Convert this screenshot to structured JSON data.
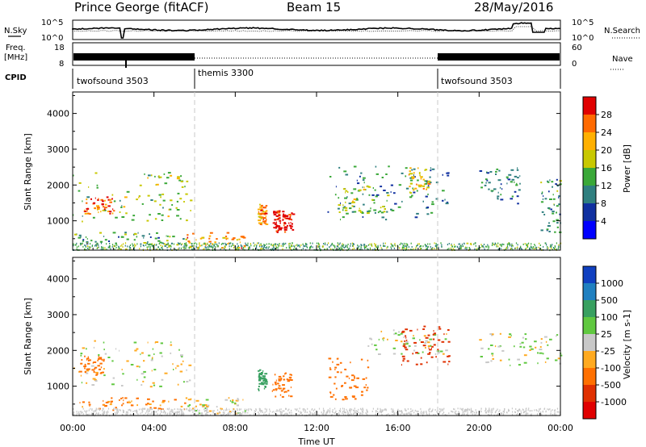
{
  "header": {
    "station": "Prince George (fitACF)",
    "beam": "Beam 15",
    "date": "28/May/2016"
  },
  "side_labels": {
    "nsky": "N.Sky",
    "freq_line1": "Freq.",
    "freq_line2": "[MHz]",
    "cpid": "CPID",
    "nsearch": "N.Search",
    "nave": "Nave",
    "nsky_ticks": [
      "10^5",
      "10^0"
    ],
    "nsearch_ticks": [
      "10^5",
      "10^0"
    ],
    "freq_ticks": [
      "18",
      "8"
    ],
    "nave_ticks": [
      "60",
      "0"
    ]
  },
  "cpid_segments": [
    {
      "label": "twofsound 3503",
      "start_hour": 0,
      "end_hour": 6
    },
    {
      "label": "themis 3300",
      "start_hour": 6,
      "end_hour": 18
    },
    {
      "label": "twofsound 3503",
      "start_hour": 18,
      "end_hour": 24
    }
  ],
  "axes": {
    "xlabel": "Time UT",
    "ylabel": "Slant Range [km]",
    "x_ticks": [
      "00:00",
      "04:00",
      "08:00",
      "12:00",
      "16:00",
      "20:00",
      "00:00"
    ],
    "x_tick_hours": [
      0,
      4,
      8,
      12,
      16,
      20,
      24
    ],
    "y_ticks": [
      "1000",
      "2000",
      "3000",
      "4000"
    ],
    "y_tick_values": [
      1000,
      2000,
      3000,
      4000
    ],
    "xlim": [
      0,
      24
    ],
    "ylim": [
      180,
      4600
    ]
  },
  "chart_data": [
    {
      "type": "heatmap",
      "title": "",
      "xlabel": "Time UT",
      "ylabel": "Slant Range [km]",
      "xlim": [
        0,
        24
      ],
      "ylim": [
        180,
        4600
      ],
      "colorbar": {
        "label": "Power [dB]",
        "ticks": [
          "28",
          "24",
          "20",
          "16",
          "12",
          "8",
          "4"
        ],
        "colors": [
          "#e00000",
          "#ff6a00",
          "#ffb000",
          "#c8c800",
          "#3aa838",
          "#2f7f7f",
          "#1030a0",
          "#0000ff"
        ]
      },
      "echo_regions": [
        {
          "t0": 0.0,
          "t1": 5.8,
          "r0": 1000,
          "r1": 2400,
          "value": 14
        },
        {
          "t0": 0.5,
          "t1": 2.0,
          "r0": 1200,
          "r1": 1700,
          "value": 24
        },
        {
          "t0": 0.0,
          "t1": 5.5,
          "r0": 350,
          "r1": 700,
          "value": 10
        },
        {
          "t0": 5.5,
          "t1": 8.5,
          "r0": 250,
          "r1": 700,
          "value": 22
        },
        {
          "t0": 9.1,
          "t1": 9.5,
          "r0": 900,
          "r1": 1500,
          "value": 22
        },
        {
          "t0": 9.8,
          "t1": 10.2,
          "r0": 700,
          "r1": 1300,
          "value": 30
        },
        {
          "t0": 10.3,
          "t1": 10.8,
          "r0": 700,
          "r1": 1300,
          "value": 30
        },
        {
          "t0": 12.5,
          "t1": 18.5,
          "r0": 1000,
          "r1": 2600,
          "value": 8
        },
        {
          "t0": 13.0,
          "t1": 15.5,
          "r0": 1200,
          "r1": 2000,
          "value": 14
        },
        {
          "t0": 16.5,
          "t1": 17.5,
          "r0": 1800,
          "r1": 2500,
          "value": 18
        },
        {
          "t0": 20.0,
          "t1": 22.0,
          "r0": 1500,
          "r1": 2500,
          "value": 8
        },
        {
          "t0": 23.0,
          "t1": 24.0,
          "r0": 700,
          "r1": 2200,
          "value": 10
        }
      ]
    },
    {
      "type": "heatmap",
      "title": "",
      "xlabel": "Time UT",
      "ylabel": "Slant Range [km]",
      "xlim": [
        0,
        24
      ],
      "ylim": [
        180,
        4600
      ],
      "colorbar": {
        "label": "Velocity [m s-1]",
        "ticks": [
          "1000",
          "500",
          "100",
          "25",
          "-25",
          "-100",
          "-500",
          "-1000"
        ],
        "colors": [
          "#1040c0",
          "#2080c0",
          "#38a060",
          "#60c840",
          "#c8c8c8",
          "#ffaa20",
          "#ff7000",
          "#e03000",
          "#e00000"
        ]
      },
      "echo_regions": [
        {
          "t0": 0.0,
          "t1": 5.8,
          "r0": 1000,
          "r1": 2300,
          "value": 0
        },
        {
          "t0": 0.3,
          "t1": 1.5,
          "r0": 1300,
          "r1": 1900,
          "value": -300
        },
        {
          "t0": 0.0,
          "t1": 5.5,
          "r0": 350,
          "r1": 700,
          "value": -150
        },
        {
          "t0": 5.5,
          "t1": 8.5,
          "r0": 250,
          "r1": 700,
          "value": 0
        },
        {
          "t0": 9.1,
          "t1": 9.5,
          "r0": 900,
          "r1": 1500,
          "value": 300
        },
        {
          "t0": 9.8,
          "t1": 10.8,
          "r0": 700,
          "r1": 1400,
          "value": -400
        },
        {
          "t0": 12.5,
          "t1": 14.5,
          "r0": 600,
          "r1": 1800,
          "value": -400
        },
        {
          "t0": 14.5,
          "t1": 18.5,
          "r0": 1900,
          "r1": 2600,
          "value": 0
        },
        {
          "t0": 16.0,
          "t1": 18.5,
          "r0": 1600,
          "r1": 2700,
          "value": -700
        },
        {
          "t0": 20.0,
          "t1": 24.0,
          "r0": 1600,
          "r1": 2500,
          "value": 0
        }
      ]
    }
  ]
}
